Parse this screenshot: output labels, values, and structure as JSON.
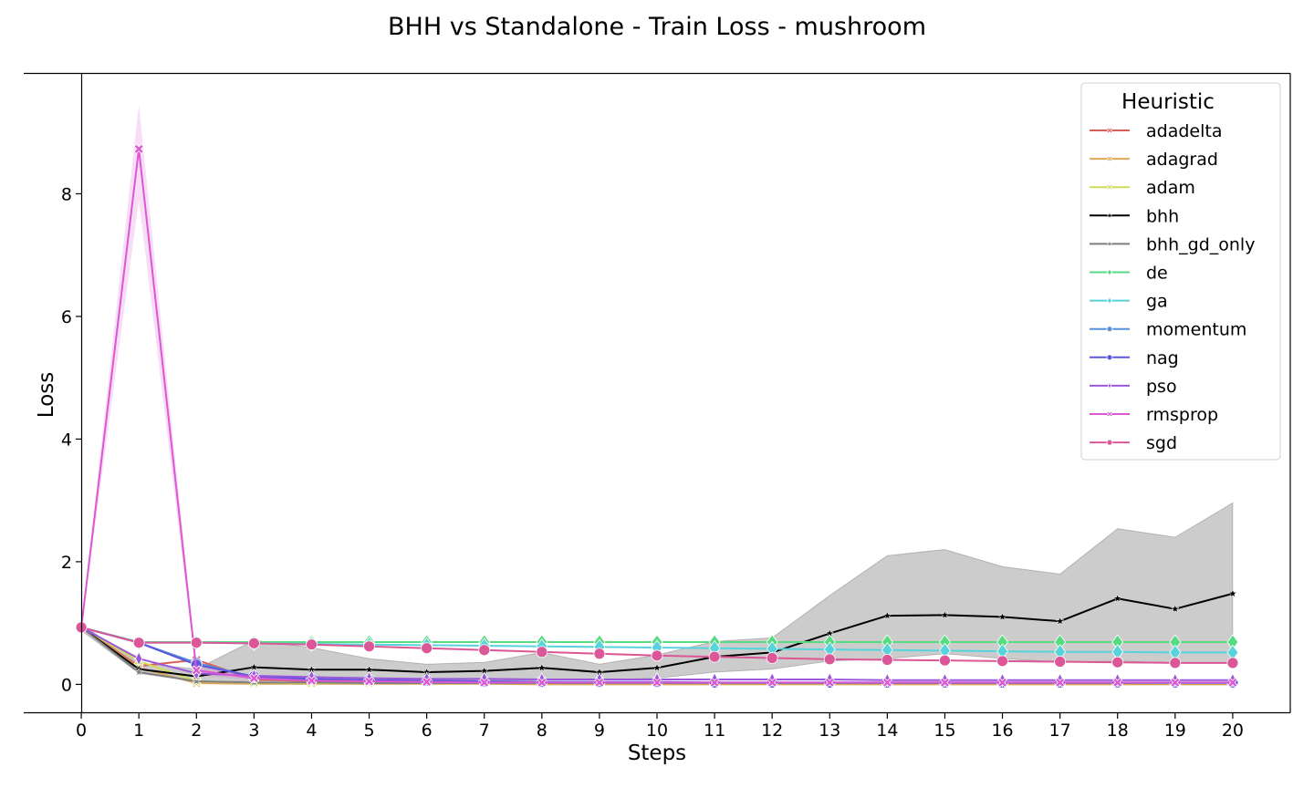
{
  "chart_data": {
    "type": "line",
    "title": "BHH vs Standalone - Train Loss - mushroom",
    "xlabel": "Steps",
    "ylabel": "Loss",
    "xlim": [
      -1,
      21
    ],
    "ylim": [
      -0.47,
      9.97
    ],
    "x_ticks": [
      0,
      1,
      2,
      3,
      4,
      5,
      6,
      7,
      8,
      9,
      10,
      11,
      12,
      13,
      14,
      15,
      16,
      17,
      18,
      19,
      20
    ],
    "y_ticks": [
      0,
      2,
      4,
      6,
      8
    ],
    "grid": false,
    "legend": {
      "title": "Heuristic",
      "placement": "top-right"
    },
    "x": [
      0,
      1,
      2,
      3,
      4,
      5,
      6,
      7,
      8,
      9,
      10,
      11,
      12,
      13,
      14,
      15,
      16,
      17,
      18,
      19,
      20
    ],
    "series": [
      {
        "name": "adadelta",
        "color": "#db5f57",
        "marker": "x",
        "values": [
          0.93,
          0.3,
          0.4,
          0.08,
          0.05,
          0.04,
          0.03,
          0.03,
          0.02,
          0.02,
          0.02,
          0.02,
          0.02,
          0.02,
          0.02,
          0.02,
          0.02,
          0.02,
          0.02,
          0.02,
          0.02
        ]
      },
      {
        "name": "adagrad",
        "color": "#dba857",
        "marker": "x",
        "values": [
          0.93,
          0.27,
          0.02,
          0.01,
          0.01,
          0.01,
          0.01,
          0.01,
          0.0,
          0.0,
          0.0,
          0.0,
          0.0,
          0.0,
          0.0,
          0.0,
          0.0,
          0.0,
          0.0,
          0.0,
          0.0
        ]
      },
      {
        "name": "adam",
        "color": "#d0db57",
        "marker": "x",
        "values": [
          0.93,
          0.38,
          0.05,
          0.03,
          0.02,
          0.02,
          0.02,
          0.02,
          0.02,
          0.02,
          0.02,
          0.02,
          0.02,
          0.02,
          0.02,
          0.02,
          0.02,
          0.02,
          0.02,
          0.02,
          0.02
        ]
      },
      {
        "name": "bhh",
        "color": "#000000",
        "marker": "star",
        "values": [
          0.93,
          0.25,
          0.13,
          0.28,
          0.24,
          0.24,
          0.2,
          0.22,
          0.27,
          0.2,
          0.27,
          0.45,
          0.52,
          0.83,
          1.12,
          1.13,
          1.1,
          1.03,
          1.4,
          1.23,
          1.48
        ],
        "band_low": [
          0.88,
          0.18,
          0.05,
          0.05,
          0.06,
          0.06,
          0.06,
          0.06,
          0.07,
          0.07,
          0.1,
          0.2,
          0.25,
          0.38,
          0.42,
          0.5,
          0.42,
          0.36,
          0.38,
          0.35,
          0.35
        ],
        "band_high": [
          0.98,
          0.35,
          0.25,
          0.72,
          0.6,
          0.42,
          0.33,
          0.36,
          0.52,
          0.33,
          0.48,
          0.7,
          0.76,
          1.45,
          2.1,
          2.2,
          1.92,
          1.8,
          2.54,
          2.4,
          2.96
        ]
      },
      {
        "name": "bhh_gd_only",
        "color": "#7f7f7f",
        "marker": "star",
        "values": [
          0.93,
          0.2,
          0.05,
          0.03,
          0.03,
          0.02,
          0.02,
          0.02,
          0.02,
          0.02,
          0.02,
          0.02,
          0.02,
          0.02,
          0.02,
          0.02,
          0.02,
          0.02,
          0.02,
          0.02,
          0.02
        ]
      },
      {
        "name": "de",
        "color": "#57db80",
        "marker": "diamond",
        "values": [
          0.93,
          0.69,
          0.69,
          0.69,
          0.69,
          0.69,
          0.69,
          0.69,
          0.69,
          0.69,
          0.69,
          0.69,
          0.69,
          0.69,
          0.69,
          0.69,
          0.69,
          0.69,
          0.69,
          0.69,
          0.69
        ]
      },
      {
        "name": "ga",
        "color": "#57d3db",
        "marker": "diamond",
        "values": [
          0.93,
          0.68,
          0.68,
          0.67,
          0.66,
          0.65,
          0.64,
          0.63,
          0.62,
          0.61,
          0.6,
          0.59,
          0.58,
          0.57,
          0.56,
          0.55,
          0.54,
          0.53,
          0.53,
          0.52,
          0.52
        ]
      },
      {
        "name": "momentum",
        "color": "#5790db",
        "marker": "circle",
        "values": [
          0.93,
          0.68,
          0.35,
          0.12,
          0.08,
          0.06,
          0.05,
          0.04,
          0.04,
          0.03,
          0.03,
          0.03,
          0.03,
          0.03,
          0.03,
          0.03,
          0.03,
          0.03,
          0.03,
          0.02,
          0.02
        ]
      },
      {
        "name": "nag",
        "color": "#5c57db",
        "marker": "circle",
        "values": [
          0.93,
          0.68,
          0.32,
          0.13,
          0.09,
          0.07,
          0.06,
          0.05,
          0.04,
          0.04,
          0.04,
          0.03,
          0.03,
          0.03,
          0.03,
          0.03,
          0.03,
          0.03,
          0.03,
          0.03,
          0.03
        ]
      },
      {
        "name": "pso",
        "color": "#9b57db",
        "marker": "thin_diamond",
        "values": [
          0.93,
          0.42,
          0.18,
          0.14,
          0.12,
          0.1,
          0.09,
          0.09,
          0.08,
          0.08,
          0.08,
          0.08,
          0.08,
          0.08,
          0.07,
          0.07,
          0.07,
          0.07,
          0.07,
          0.07,
          0.07
        ]
      },
      {
        "name": "rmsprop",
        "color": "#db57d3",
        "marker": "x",
        "values": [
          0.93,
          8.73,
          0.23,
          0.1,
          0.06,
          0.05,
          0.04,
          0.03,
          0.03,
          0.03,
          0.03,
          0.03,
          0.03,
          0.03,
          0.03,
          0.03,
          0.03,
          0.03,
          0.03,
          0.03,
          0.03
        ],
        "band_low": [
          0.9,
          7.9,
          0.15,
          0.07,
          0.04,
          0.03,
          0.03,
          0.02,
          0.02,
          0.02,
          0.02,
          0.02,
          0.02,
          0.02,
          0.02,
          0.02,
          0.02,
          0.02,
          0.02,
          0.02,
          0.02
        ],
        "band_high": [
          0.96,
          9.45,
          0.32,
          0.13,
          0.08,
          0.07,
          0.05,
          0.04,
          0.04,
          0.04,
          0.04,
          0.04,
          0.04,
          0.04,
          0.04,
          0.04,
          0.04,
          0.04,
          0.04,
          0.04,
          0.04
        ]
      },
      {
        "name": "sgd",
        "color": "#db5797",
        "marker": "circle",
        "values": [
          0.93,
          0.68,
          0.68,
          0.67,
          0.65,
          0.62,
          0.59,
          0.56,
          0.53,
          0.5,
          0.47,
          0.45,
          0.43,
          0.41,
          0.4,
          0.39,
          0.38,
          0.37,
          0.36,
          0.35,
          0.35
        ]
      }
    ]
  }
}
